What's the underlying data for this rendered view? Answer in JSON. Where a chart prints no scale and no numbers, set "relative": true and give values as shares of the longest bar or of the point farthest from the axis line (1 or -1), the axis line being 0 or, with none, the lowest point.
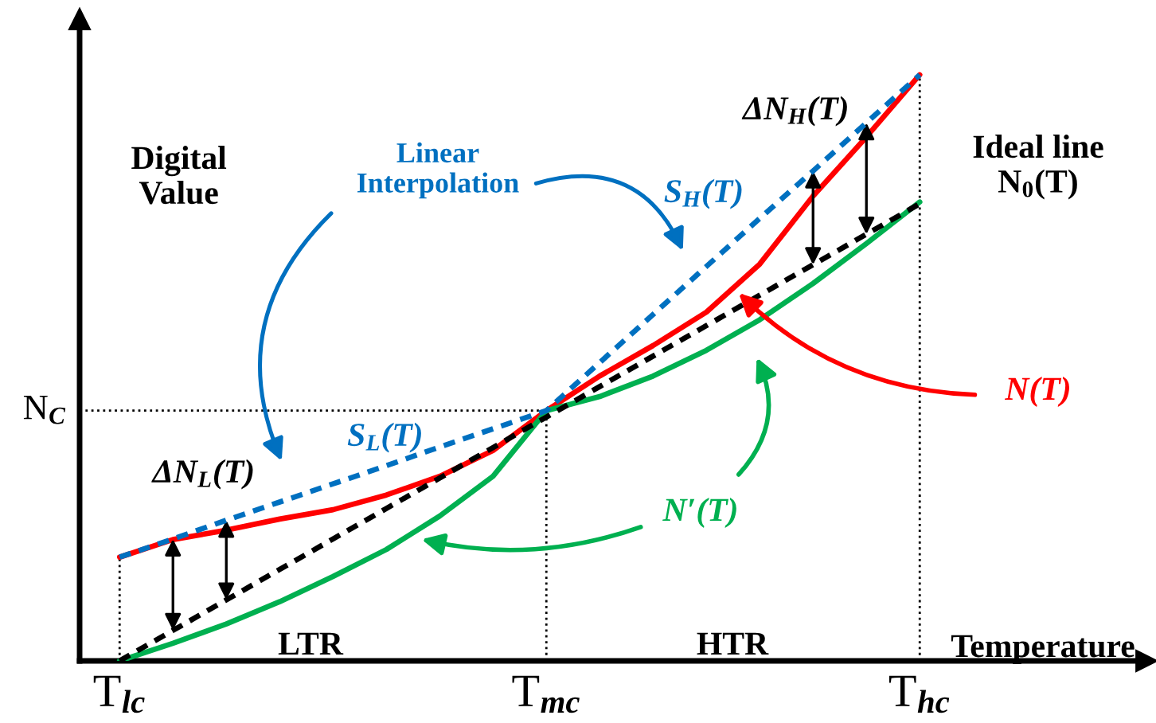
{
  "chart_data": {
    "type": "line",
    "relative": true,
    "xlabel": "Temperature",
    "ylabel": "Digital\nValue",
    "categories": [
      "T$_{lc}$",
      null,
      null,
      null,
      null,
      null,
      null,
      null,
      "T$_{mc}$",
      null,
      null,
      null,
      null,
      null,
      null,
      "T$_{hc}$",
      null,
      null,
      null,
      null
    ],
    "series": [
      {
        "color": "#0070c0",
        "line_style": "dashed",
        "values": [
          0.177,
          0.208,
          0.24,
          0.271,
          0.302,
          0.333,
          0.365,
          0.396,
          0.427,
          0.509,
          0.591,
          0.673,
          0.755,
          0.836,
          0.918,
          1.0,
          null,
          null,
          null,
          null
        ]
      },
      {
        "name": "N(T)",
        "color": "#ff0000",
        "line_style": "solid",
        "values": [
          0.177,
          0.207,
          0.223,
          0.242,
          0.258,
          0.283,
          0.315,
          0.359,
          0.427,
          0.486,
          0.538,
          0.595,
          0.677,
          0.793,
          0.894,
          1.0,
          null,
          null,
          null,
          null
        ]
      },
      {
        "name": "N′(T)",
        "color": "#00b050",
        "line_style": "solid",
        "values": [
          0.0,
          0.03,
          0.063,
          0.101,
          0.144,
          0.19,
          0.247,
          0.315,
          0.427,
          0.451,
          0.486,
          0.53,
          0.582,
          0.644,
          0.712,
          0.783,
          null,
          null,
          null,
          null
        ]
      },
      {
        "name": "Ideal line\nN$_{0}$(T)",
        "color": "#000000",
        "line_style": "dashed",
        "values": [
          0.0,
          0.052,
          0.104,
          0.156,
          0.208,
          0.26,
          0.312,
          0.364,
          0.416,
          0.468,
          0.52,
          0.572,
          0.624,
          0.676,
          0.728,
          0.78,
          null,
          null,
          null,
          null
        ]
      }
    ],
    "ref_lines": [
      {
        "axis": "y",
        "value": 0.427,
        "label": "N$_{C}$",
        "line_style": "dotted",
        "color": "#000000"
      },
      {
        "axis": "x",
        "value": "T$_{lc}$",
        "line_style": "dotted",
        "color": "#000000"
      },
      {
        "axis": "x",
        "value": "T$_{mc}$",
        "line_style": "dotted",
        "color": "#000000"
      },
      {
        "axis": "x",
        "value": "T$_{hc}$",
        "line_style": "dotted",
        "color": "#000000"
      }
    ],
    "annotations": [
      "Linear\nInterpolation",
      "S$_{L}$(T)",
      "S$_{H}$(T)",
      "ΔN$_{L}$(T)",
      "ΔN$_{H}$(T)",
      "LTR",
      "HTR"
    ]
  }
}
